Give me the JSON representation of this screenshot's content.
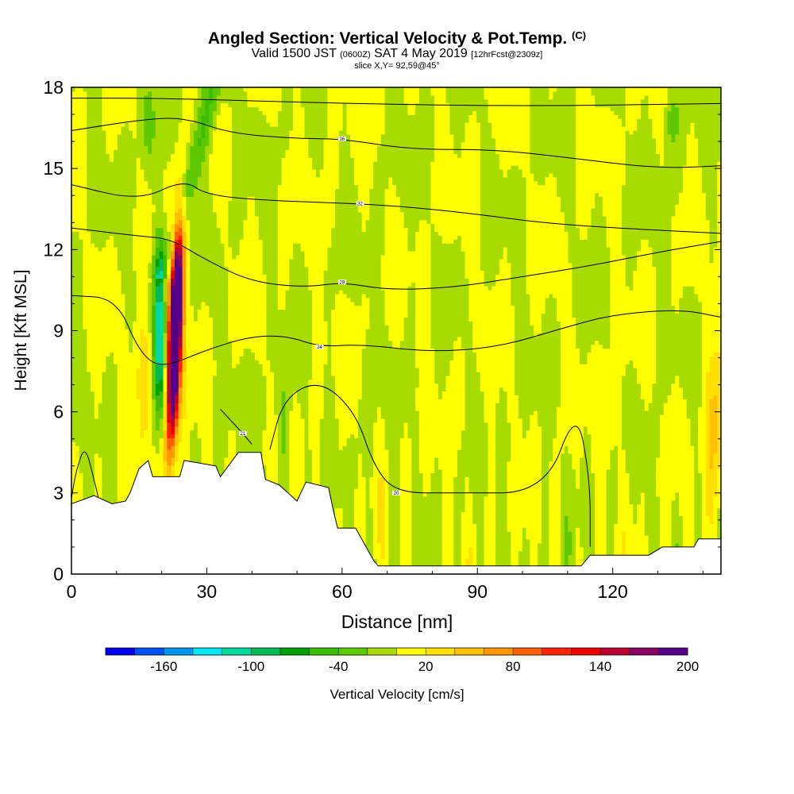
{
  "header": {
    "title": "Angled Section: Vertical Velocity & Pot.Temp.",
    "title_units": "(C)",
    "valid_prefix": "Valid 1500 JST",
    "valid_zulu": "(0600Z)",
    "valid_date": "SAT 4 May 2019",
    "forecast_note": "[12hrFcst@2309z]",
    "slice_info": "slice X,Y= 92,59@45°"
  },
  "chart_data": {
    "type": "heatmap",
    "xlabel": "Distance [nm]",
    "ylabel": "Height [Kft MSL]",
    "xlim": [
      0,
      144
    ],
    "ylim": [
      0,
      18
    ],
    "x_ticks": [
      0,
      30,
      60,
      90,
      120
    ],
    "y_ticks": [
      0,
      3,
      6,
      9,
      12,
      15,
      18
    ],
    "grid": false,
    "colorbar": {
      "label": "Vertical Velocity [cm/s]",
      "tick_labels": [
        "-160",
        "-100",
        "-40",
        "20",
        "80",
        "140",
        "200"
      ],
      "tick_values": [
        -160,
        -100,
        -40,
        20,
        80,
        140,
        200
      ],
      "colors": [
        "#0000ee",
        "#0050f0",
        "#0096f0",
        "#00e6f0",
        "#00d8a0",
        "#00bb55",
        "#00a000",
        "#3cbd00",
        "#5ec800",
        "#a8dc00",
        "#ffff00",
        "#ffe000",
        "#ffc000",
        "#ff9800",
        "#ff6000",
        "#ff2400",
        "#ee0000",
        "#bb0033",
        "#880060",
        "#550088"
      ]
    },
    "terrain_kft": [
      [
        0,
        2.6
      ],
      [
        5,
        2.9
      ],
      [
        9,
        2.6
      ],
      [
        12,
        2.7
      ],
      [
        13,
        3.0
      ],
      [
        15,
        3.9
      ],
      [
        17,
        4.2
      ],
      [
        18,
        3.6
      ],
      [
        24,
        3.6
      ],
      [
        25,
        4.2
      ],
      [
        32,
        4.0
      ],
      [
        33,
        3.6
      ],
      [
        37,
        4.5
      ],
      [
        42,
        4.5
      ],
      [
        43,
        3.5
      ],
      [
        46,
        3.3
      ],
      [
        48,
        3.0
      ],
      [
        50,
        2.7
      ],
      [
        52,
        3.4
      ],
      [
        57,
        3.2
      ],
      [
        58,
        2.4
      ],
      [
        59,
        1.7
      ],
      [
        63,
        1.7
      ],
      [
        65,
        1.1
      ],
      [
        67,
        0.5
      ],
      [
        68,
        0.3
      ],
      [
        113,
        0.3
      ],
      [
        115,
        0.7
      ],
      [
        128,
        0.7
      ],
      [
        131,
        1.0
      ],
      [
        138,
        1.0
      ],
      [
        139,
        1.3
      ],
      [
        144,
        1.3
      ]
    ],
    "updraft_core": {
      "x": 23,
      "y_range": [
        5,
        12.4
      ],
      "max_cms": 210
    },
    "downdraft_core": {
      "x": 19.5,
      "y_range": [
        6,
        11
      ],
      "min_cms": -100
    },
    "theta_isolines": [
      {
        "label": "",
        "points": [
          [
            0,
            2.8
          ],
          [
            1,
            3.8
          ],
          [
            3,
            4.8
          ],
          [
            5,
            3.5
          ],
          [
            6,
            2.8
          ]
        ]
      },
      {
        "label": "21",
        "points": [
          [
            33,
            6.1
          ],
          [
            38,
            5.2
          ],
          [
            40,
            4.8
          ]
        ]
      },
      {
        "label": "20",
        "points": [
          [
            44,
            4.6
          ],
          [
            47,
            6.5
          ],
          [
            55,
            7.2
          ],
          [
            63,
            6.0
          ],
          [
            67,
            4.0
          ],
          [
            72,
            3.0
          ],
          [
            85,
            3.0
          ],
          [
            105,
            3.0
          ],
          [
            112,
            6.2
          ],
          [
            115,
            3.5
          ],
          [
            115,
            1.0
          ]
        ]
      },
      {
        "label": "24",
        "points": [
          [
            0,
            10.3
          ],
          [
            10,
            10.2
          ],
          [
            15,
            8.2
          ],
          [
            20,
            7.6
          ],
          [
            30,
            8.3
          ],
          [
            40,
            8.8
          ],
          [
            48,
            8.8
          ],
          [
            55,
            8.4
          ],
          [
            64,
            8.5
          ],
          [
            80,
            8.2
          ],
          [
            95,
            8.4
          ],
          [
            109,
            9.1
          ],
          [
            120,
            9.6
          ],
          [
            135,
            9.8
          ],
          [
            144,
            9.5
          ]
        ]
      },
      {
        "label": "28",
        "points": [
          [
            0,
            12.8
          ],
          [
            15,
            12.5
          ],
          [
            22,
            12.4
          ],
          [
            30,
            11.6
          ],
          [
            40,
            10.8
          ],
          [
            52,
            10.6
          ],
          [
            60,
            10.8
          ],
          [
            70,
            10.5
          ],
          [
            85,
            10.6
          ],
          [
            100,
            11.0
          ],
          [
            115,
            11.4
          ],
          [
            130,
            11.9
          ],
          [
            144,
            12.3
          ]
        ]
      },
      {
        "label": "32",
        "points": [
          [
            0,
            14.4
          ],
          [
            15,
            13.8
          ],
          [
            25,
            14.6
          ],
          [
            30,
            14.0
          ],
          [
            45,
            13.8
          ],
          [
            64,
            13.7
          ],
          [
            80,
            13.5
          ],
          [
            95,
            13.2
          ],
          [
            104,
            13.0
          ],
          [
            120,
            12.8
          ],
          [
            144,
            12.6
          ]
        ]
      },
      {
        "label": "36",
        "points": [
          [
            0,
            16.4
          ],
          [
            15,
            16.8
          ],
          [
            25,
            16.9
          ],
          [
            35,
            16.3
          ],
          [
            50,
            16.1
          ],
          [
            60,
            16.1
          ],
          [
            75,
            15.7
          ],
          [
            94,
            15.7
          ],
          [
            110,
            15.4
          ],
          [
            130,
            15.0
          ],
          [
            144,
            15.1
          ]
        ]
      },
      {
        "label": "",
        "points": [
          [
            0,
            17.6
          ],
          [
            20,
            17.6
          ],
          [
            60,
            17.4
          ],
          [
            100,
            17.3
          ],
          [
            144,
            17.4
          ]
        ]
      }
    ]
  }
}
